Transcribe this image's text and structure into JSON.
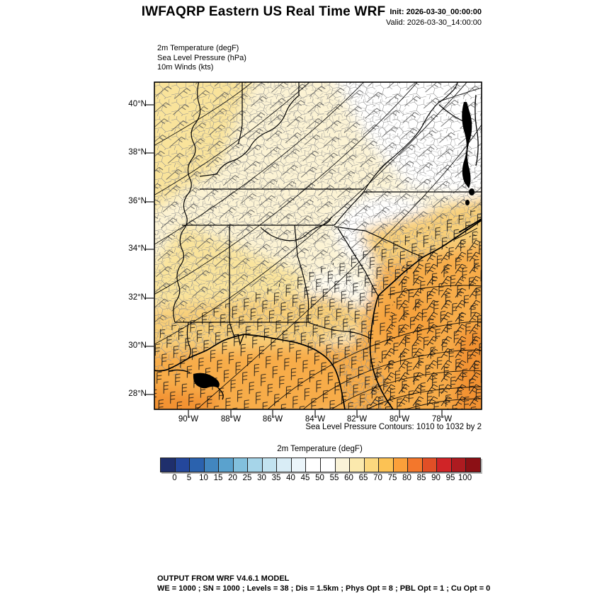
{
  "header": {
    "title": "IWFAQRP Eastern US Real Time WRF",
    "init_label": "Init:",
    "init_value": "2026-03-30_00:00:00",
    "valid_label": "Valid:",
    "valid_value": "2026-03-30_14:00:00"
  },
  "fields": {
    "line1": "2m Temperature   (degF)",
    "line2": "Sea Level Pressure   (hPa)",
    "line3": "10m Winds   (kts)"
  },
  "map": {
    "lat_ticks": [
      "40°N",
      "38°N",
      "36°N",
      "34°N",
      "32°N",
      "30°N",
      "28°N"
    ],
    "lon_ticks": [
      "90°W",
      "88°W",
      "86°W",
      "84°W",
      "82°W",
      "80°W",
      "78°W"
    ],
    "pressure_note": "Sea Level Pressure Contours: 1010 to 1032 by 2"
  },
  "colorbar": {
    "title": "2m Temperature  (degF)",
    "tick_labels": [
      "0",
      "5",
      "10",
      "15",
      "20",
      "25",
      "30",
      "35",
      "40",
      "45",
      "50",
      "55",
      "60",
      "65",
      "70",
      "75",
      "80",
      "85",
      "90",
      "95",
      "100"
    ],
    "colors": [
      "#1f2f6c",
      "#24479c",
      "#2b62ae",
      "#4286bf",
      "#5aa2ce",
      "#82c0dd",
      "#a6d5e9",
      "#c2e3f0",
      "#d9edf6",
      "#ebf5fa",
      "#ffffff",
      "#ffffff",
      "#faf3d8",
      "#fbe9ad",
      "#fcd87e",
      "#fcc254",
      "#fba03a",
      "#f3772c",
      "#e14f26",
      "#d02427",
      "#ad1b20",
      "#8c1015"
    ]
  },
  "footer": {
    "line1": "OUTPUT FROM WRF V4.6.1 MODEL",
    "line2": "WE = 1000 ; SN = 1000 ; Levels = 38 ; Dis = 1.5km ; Phys Opt = 8 ; PBL Opt = 1 ; Cu Opt = 0"
  },
  "chart_data": {
    "type": "heatmap",
    "title": "2m Temperature  (degF)",
    "colorbar_levels": [
      0,
      5,
      10,
      15,
      20,
      25,
      30,
      35,
      40,
      45,
      50,
      55,
      60,
      65,
      70,
      75,
      80,
      85,
      90,
      95,
      100
    ],
    "lat_range_deg_n": [
      27.4,
      40.9
    ],
    "lon_range_deg_w": [
      91.6,
      76.1
    ],
    "pressure_contours_hpa": {
      "from": 1010,
      "to": 1032,
      "by": 2
    }
  }
}
